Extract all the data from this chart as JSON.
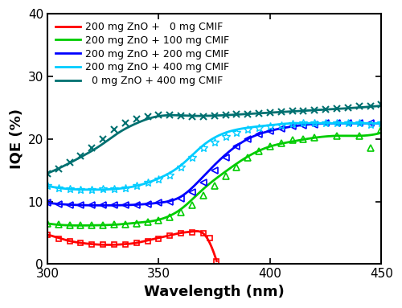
{
  "title": "",
  "xlabel": "Wavelength (nm)",
  "ylabel": "IQE (%)",
  "xlim": [
    300,
    450
  ],
  "ylim": [
    0,
    40
  ],
  "xticks": [
    300,
    350,
    400,
    450
  ],
  "yticks": [
    0,
    10,
    20,
    30,
    40
  ],
  "series": [
    {
      "label": "200 mg ZnO +   0 mg CMIF",
      "color": "#ff0000",
      "marker": "s",
      "marker_facecolor": "none",
      "linestyle": "-",
      "x_scatter": [
        300,
        305,
        310,
        315,
        320,
        325,
        330,
        335,
        340,
        345,
        350,
        355,
        360,
        365,
        370,
        373,
        376
      ],
      "y_scatter": [
        4.7,
        4.1,
        3.7,
        3.4,
        3.2,
        3.1,
        3.1,
        3.2,
        3.4,
        3.7,
        4.1,
        4.5,
        4.9,
        5.1,
        5.0,
        4.2,
        0.5
      ],
      "x_line": [
        300,
        305,
        310,
        315,
        320,
        325,
        330,
        335,
        340,
        345,
        350,
        355,
        360,
        365,
        370,
        372,
        374,
        376
      ],
      "y_line": [
        4.7,
        4.2,
        3.7,
        3.4,
        3.2,
        3.1,
        3.1,
        3.2,
        3.4,
        3.8,
        4.2,
        4.6,
        5.0,
        5.2,
        4.9,
        4.0,
        2.5,
        0.5
      ]
    },
    {
      "label": "200 mg ZnO + 100 mg CMIF",
      "color": "#00cc00",
      "marker": "^",
      "marker_facecolor": "none",
      "linestyle": "-",
      "x_scatter": [
        300,
        305,
        310,
        315,
        320,
        325,
        330,
        335,
        340,
        345,
        350,
        355,
        360,
        365,
        370,
        375,
        380,
        385,
        390,
        395,
        400,
        405,
        410,
        415,
        420,
        430,
        440,
        445,
        450
      ],
      "y_scatter": [
        6.5,
        6.3,
        6.2,
        6.2,
        6.2,
        6.2,
        6.3,
        6.3,
        6.5,
        6.7,
        7.0,
        7.5,
        8.3,
        9.5,
        11.0,
        12.5,
        14.0,
        15.5,
        17.0,
        18.0,
        18.8,
        19.3,
        19.8,
        20.0,
        20.2,
        20.5,
        20.5,
        18.5,
        21.5
      ],
      "x_line": [
        300,
        310,
        320,
        330,
        340,
        350,
        360,
        370,
        380,
        390,
        400,
        410,
        420,
        430,
        440,
        450
      ],
      "y_line": [
        6.5,
        6.2,
        6.2,
        6.3,
        6.6,
        7.1,
        8.8,
        12.0,
        14.8,
        17.2,
        18.8,
        19.6,
        20.2,
        20.5,
        20.5,
        21.0
      ]
    },
    {
      "label": "200 mg ZnO + 200 mg CMIF",
      "color": "#0000ff",
      "marker": "<",
      "marker_facecolor": "none",
      "linestyle": "-",
      "x_scatter": [
        300,
        305,
        310,
        315,
        320,
        325,
        330,
        335,
        340,
        345,
        350,
        355,
        360,
        365,
        370,
        375,
        380,
        385,
        390,
        395,
        400,
        405,
        410,
        415,
        420,
        425,
        430,
        435,
        440,
        445,
        450
      ],
      "y_scatter": [
        9.8,
        9.6,
        9.5,
        9.5,
        9.4,
        9.4,
        9.4,
        9.4,
        9.5,
        9.6,
        9.8,
        10.0,
        10.5,
        11.5,
        13.0,
        15.0,
        17.0,
        18.8,
        20.0,
        20.8,
        21.3,
        21.7,
        22.0,
        22.2,
        22.3,
        22.5,
        22.5,
        22.5,
        22.5,
        22.5,
        22.5
      ],
      "x_line": [
        300,
        310,
        320,
        330,
        340,
        350,
        360,
        370,
        380,
        390,
        400,
        410,
        420,
        430,
        440,
        450
      ],
      "y_line": [
        9.8,
        9.5,
        9.4,
        9.4,
        9.5,
        9.8,
        10.8,
        14.0,
        17.5,
        20.0,
        21.3,
        22.0,
        22.4,
        22.5,
        22.5,
        22.5
      ]
    },
    {
      "label": "200 mg ZnO + 400 mg CMIF",
      "color": "#00ccff",
      "marker": "*",
      "marker_facecolor": "none",
      "linestyle": "-",
      "x_scatter": [
        300,
        305,
        310,
        315,
        320,
        325,
        330,
        335,
        340,
        345,
        350,
        355,
        360,
        365,
        370,
        375,
        380,
        385,
        390,
        395,
        400,
        405,
        410,
        415,
        420,
        425,
        430,
        435,
        440,
        445,
        450
      ],
      "y_scatter": [
        12.5,
        12.2,
        12.0,
        11.9,
        11.9,
        12.0,
        12.0,
        12.2,
        12.5,
        13.0,
        13.5,
        14.2,
        15.5,
        17.0,
        18.5,
        19.5,
        20.3,
        21.0,
        21.5,
        21.8,
        22.0,
        22.2,
        22.4,
        22.5,
        22.5,
        22.5,
        22.5,
        22.5,
        22.5,
        22.3,
        22.5
      ],
      "x_line": [
        300,
        310,
        320,
        330,
        340,
        350,
        360,
        370,
        380,
        390,
        400,
        410,
        420,
        430,
        440,
        450
      ],
      "y_line": [
        12.5,
        12.0,
        11.9,
        12.0,
        12.5,
        13.7,
        15.8,
        19.0,
        21.0,
        21.8,
        22.2,
        22.5,
        22.5,
        22.5,
        22.5,
        22.5
      ]
    },
    {
      "label": "  0 mg ZnO + 400 mg CMIF",
      "color": "#007070",
      "marker": "x",
      "marker_facecolor": "#007070",
      "linestyle": "-",
      "x_scatter": [
        300,
        305,
        310,
        315,
        320,
        325,
        330,
        335,
        340,
        345,
        350,
        355,
        360,
        365,
        370,
        375,
        380,
        385,
        390,
        395,
        400,
        405,
        410,
        415,
        420,
        425,
        430,
        435,
        440,
        445,
        450
      ],
      "y_scatter": [
        14.5,
        15.2,
        16.2,
        17.3,
        18.5,
        20.0,
        21.5,
        22.5,
        23.2,
        23.6,
        23.8,
        23.8,
        23.7,
        23.6,
        23.6,
        23.7,
        23.8,
        23.9,
        24.0,
        24.1,
        24.2,
        24.3,
        24.5,
        24.5,
        24.6,
        24.7,
        24.8,
        25.0,
        25.2,
        25.3,
        25.5
      ],
      "x_line": [
        300,
        308,
        316,
        324,
        332,
        340,
        348,
        356,
        364,
        372,
        380,
        390,
        400,
        415,
        430,
        450
      ],
      "y_line": [
        14.5,
        15.8,
        17.3,
        19.0,
        21.0,
        22.5,
        23.5,
        23.8,
        23.7,
        23.7,
        23.8,
        24.0,
        24.2,
        24.5,
        24.8,
        25.3
      ]
    }
  ],
  "background_color": "#ffffff",
  "legend_loc": "upper left",
  "legend_fontsize": 9.0,
  "axis_label_fontsize": 13,
  "tick_labelsize": 11
}
